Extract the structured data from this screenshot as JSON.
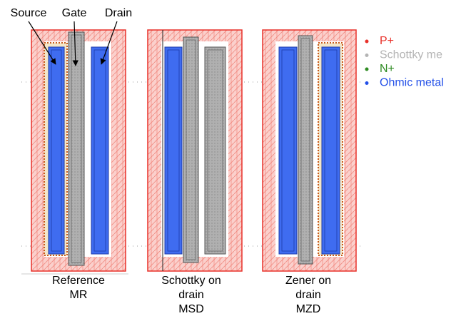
{
  "labels": {
    "source": "Source",
    "gate": "Gate",
    "drain": "Drain"
  },
  "legend": [
    {
      "label": "P+",
      "color": "#e8312a"
    },
    {
      "label": "Schottky me",
      "color": "#b4b4b4"
    },
    {
      "label": "N+",
      "color": "#2e8b22"
    },
    {
      "label": "Ohmic metal",
      "color": "#2350e8"
    }
  ],
  "captions": [
    {
      "lines": [
        "Reference",
        "MR"
      ]
    },
    {
      "lines": [
        "Schottky on",
        "drain",
        "MSD"
      ]
    },
    {
      "lines": [
        "Zener on",
        "drain",
        "MZD"
      ]
    }
  ]
}
